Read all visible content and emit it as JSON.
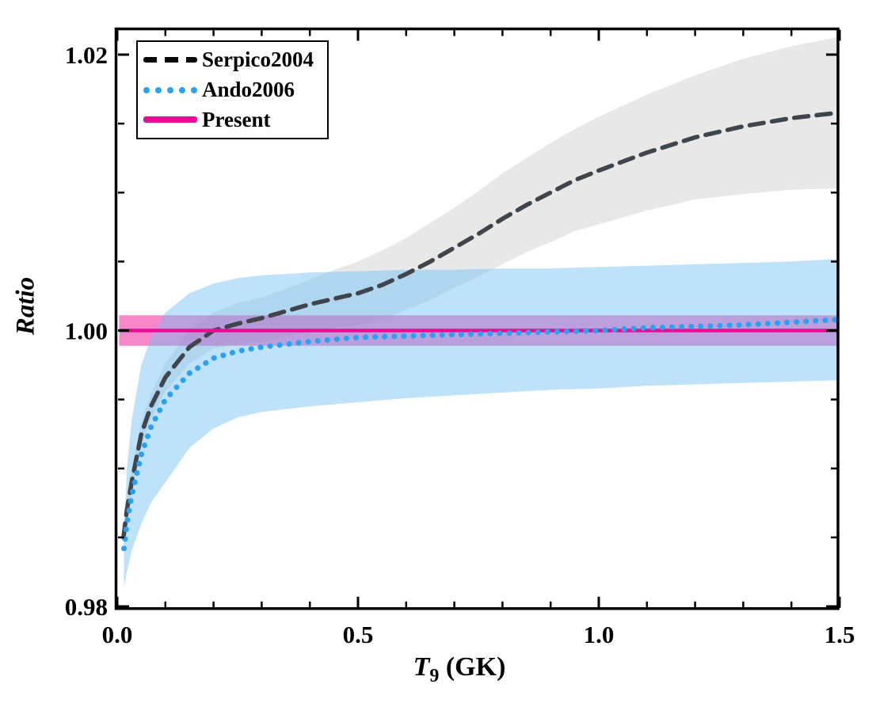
{
  "chart_data": {
    "type": "line",
    "title": "",
    "xlabel_var": "T",
    "xlabel_sub": "9",
    "xlabel_unit": " (GK)",
    "ylabel": "Ratio",
    "xlim": [
      0,
      1.5
    ],
    "ylim": [
      0.98,
      1.0218
    ],
    "grid": false,
    "legend_position": "upper-left",
    "x_ticks": {
      "values": [
        0.0,
        0.5,
        1.0,
        1.5
      ],
      "labels": [
        "0.0",
        "0.5",
        "1.0",
        "1.5"
      ]
    },
    "x_minor_ticks": [
      0.1,
      0.2,
      0.3,
      0.4,
      0.6,
      0.7,
      0.8,
      0.9,
      1.1,
      1.2,
      1.3,
      1.4
    ],
    "y_ticks": {
      "values": [
        0.98,
        1.0,
        1.02
      ],
      "labels": [
        "0.98",
        "1.00",
        "1.02"
      ]
    },
    "y_minor_ticks": [
      0.985,
      0.99,
      0.995,
      1.005,
      1.01,
      1.015
    ],
    "colors": {
      "serpico_line": "#3e454d",
      "serpico_band": "rgba(128,128,133,0.18)",
      "ando_line": "#2ba1f1",
      "ando_band": "rgba(108,191,243,0.45)",
      "present_line": "#e70e95",
      "present_band": "rgba(244,55,163,0.60)",
      "axis": "#000000"
    },
    "series": [
      {
        "name": "Serpico2004",
        "style": "dashed",
        "x": [
          0.013,
          0.02,
          0.03,
          0.05,
          0.07,
          0.1,
          0.15,
          0.2,
          0.25,
          0.3,
          0.35,
          0.4,
          0.45,
          0.5,
          0.55,
          0.6,
          0.65,
          0.7,
          0.75,
          0.8,
          0.85,
          0.9,
          0.95,
          1.0,
          1.1,
          1.2,
          1.3,
          1.4,
          1.5
        ],
        "y": [
          0.985,
          0.987,
          0.989,
          0.9925,
          0.9945,
          0.9966,
          0.9988,
          1.0,
          1.0005,
          1.0009,
          1.0014,
          1.0019,
          1.0023,
          1.0027,
          1.0033,
          1.0041,
          1.005,
          1.006,
          1.007,
          1.0081,
          1.0091,
          1.01,
          1.0109,
          1.0116,
          1.0129,
          1.014,
          1.0148,
          1.0154,
          1.0158
        ],
        "band_top": [
          0.9857,
          0.9878,
          0.9898,
          0.9934,
          0.9954,
          0.9976,
          1.0,
          1.0013,
          1.002,
          1.0024,
          1.003,
          1.0037,
          1.0044,
          1.005,
          1.0058,
          1.0067,
          1.0078,
          1.0089,
          1.0101,
          1.0114,
          1.0125,
          1.0136,
          1.0146,
          1.0155,
          1.0171,
          1.0185,
          1.0197,
          1.0206,
          1.0213
        ],
        "band_bottom": [
          0.9843,
          0.9862,
          0.9882,
          0.9916,
          0.9936,
          0.9956,
          0.9976,
          0.9987,
          0.999,
          0.9992,
          0.9996,
          0.9999,
          1.0002,
          1.0004,
          1.0008,
          1.0015,
          1.0022,
          1.0031,
          1.0039,
          1.0048,
          1.0057,
          1.0064,
          1.0072,
          1.0077,
          1.0087,
          1.0095,
          1.0099,
          1.0102,
          1.0103
        ]
      },
      {
        "name": "Ando2006",
        "style": "dotted",
        "x": [
          0.014,
          0.02,
          0.03,
          0.05,
          0.07,
          0.1,
          0.15,
          0.2,
          0.25,
          0.3,
          0.4,
          0.5,
          0.6,
          0.7,
          0.8,
          0.9,
          1.0,
          1.1,
          1.2,
          1.3,
          1.4,
          1.5
        ],
        "y": [
          0.9842,
          0.986,
          0.988,
          0.991,
          0.993,
          0.995,
          0.9969,
          0.998,
          0.9985,
          0.9988,
          0.9992,
          0.9995,
          0.9996,
          0.9997,
          0.9998,
          0.9999,
          1.0,
          1.0002,
          1.0003,
          1.0004,
          1.0006,
          1.0008
        ],
        "band_top": [
          0.985,
          0.99,
          0.9935,
          0.9975,
          0.9995,
          1.0013,
          1.0027,
          1.0034,
          1.0038,
          1.004,
          1.0042,
          1.0043,
          1.0044,
          1.0044,
          1.0045,
          1.0045,
          1.0046,
          1.0047,
          1.0048,
          1.0049,
          1.005,
          1.0052
        ],
        "band_bottom": [
          0.9813,
          0.9825,
          0.984,
          0.986,
          0.9875,
          0.989,
          0.9915,
          0.9929,
          0.9937,
          0.9941,
          0.9945,
          0.9948,
          0.9951,
          0.9953,
          0.9955,
          0.9957,
          0.9958,
          0.996,
          0.9961,
          0.9962,
          0.9963,
          0.9964
        ]
      },
      {
        "name": "Present",
        "style": "solid",
        "x": [
          0.004,
          1.5
        ],
        "y": [
          1.0,
          1.0
        ],
        "band_top": [
          1.0011,
          1.0011
        ],
        "band_bottom": [
          0.9989,
          0.9989
        ]
      }
    ]
  },
  "legend": {
    "items": [
      {
        "label": "Serpico2004"
      },
      {
        "label": "Ando2006"
      },
      {
        "label": "Present"
      }
    ]
  }
}
